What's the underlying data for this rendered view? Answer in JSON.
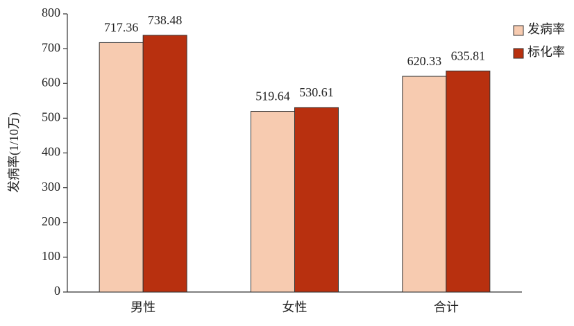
{
  "chart_data": {
    "type": "bar",
    "y_label": "发病率(1/10万)",
    "categories": [
      "男性",
      "女性",
      "合计"
    ],
    "series": [
      {
        "name": "发病率",
        "color": "#f7cbb0",
        "values": [
          717.36,
          519.64,
          620.33
        ]
      },
      {
        "name": "标化率",
        "color": "#b8300f",
        "values": [
          738.48,
          530.61,
          635.81
        ]
      }
    ],
    "ylim": [
      0,
      800
    ],
    "yticks": [
      0,
      100,
      200,
      300,
      400,
      500,
      600,
      700,
      800
    ],
    "legend": "top-right"
  }
}
